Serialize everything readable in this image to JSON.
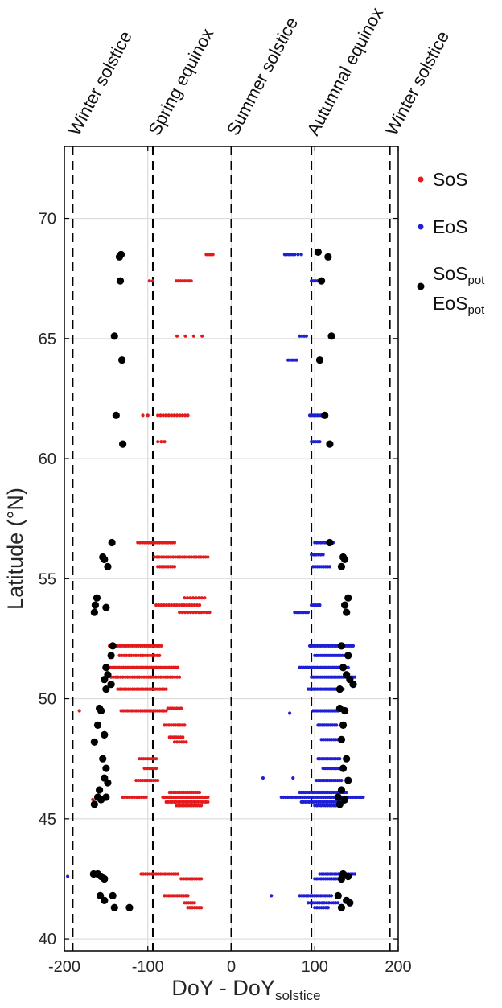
{
  "chart_data": {
    "type": "scatter",
    "xlabel": "DoY - DoY",
    "xlabel_sub": "solstice",
    "ylabel": "Latitude (°N)",
    "xlim": [
      -200,
      200
    ],
    "ylim": [
      39.5,
      73
    ],
    "xticks": [
      -200,
      -100,
      0,
      100,
      200
    ],
    "xtick_labels": [
      "-200",
      "-100",
      "0",
      "100",
      "200"
    ],
    "yticks": [
      40,
      45,
      50,
      55,
      60,
      65,
      70
    ],
    "ytick_labels": [
      "40",
      "45",
      "50",
      "55",
      "60",
      "65",
      "70"
    ],
    "grid": true,
    "events": [
      {
        "label": "Winter solstice",
        "x": -190
      },
      {
        "label": "Spring equinox",
        "x": -94
      },
      {
        "label": "Summer solstice",
        "x": 0
      },
      {
        "label": "Autumnal equinox",
        "x": 96
      },
      {
        "label": "Winter solstice",
        "x": 190
      }
    ],
    "legend": {
      "position": "right",
      "items": [
        {
          "series": "SoS",
          "label": "SoS",
          "sub": "",
          "color": "#e41a1c"
        },
        {
          "series": "EoS",
          "label": "EoS",
          "sub": "",
          "color": "#1f1fd6"
        },
        {
          "series": "pot",
          "label": "SoS",
          "sub": "pot",
          "color": "#000000"
        }
      ],
      "extra": {
        "label": "EoS",
        "sub": "pot"
      }
    },
    "series": [
      {
        "name": "SoS",
        "color": "#e41a1c",
        "clusters": [
          {
            "lat": 68.5,
            "x_from": -30,
            "x_to": -22,
            "n": 5
          },
          {
            "lat": 67.4,
            "x_from": -98,
            "x_to": -94,
            "n": 2
          },
          {
            "lat": 67.4,
            "x_from": -66,
            "x_to": -48,
            "n": 8
          },
          {
            "lat": 65.1,
            "x_from": -65,
            "x_to": -35,
            "n": 4
          },
          {
            "lat": 61.8,
            "x_from": -106,
            "x_to": -100,
            "n": 2
          },
          {
            "lat": 61.8,
            "x_from": -88,
            "x_to": -52,
            "n": 12
          },
          {
            "lat": 60.7,
            "x_from": -88,
            "x_to": -80,
            "n": 3
          },
          {
            "lat": 56.5,
            "x_from": -112,
            "x_to": -68,
            "n": 18
          },
          {
            "lat": 55.9,
            "x_from": -92,
            "x_to": -28,
            "n": 24
          },
          {
            "lat": 55.5,
            "x_from": -88,
            "x_to": -68,
            "n": 9
          },
          {
            "lat": 54.2,
            "x_from": -56,
            "x_to": -32,
            "n": 8
          },
          {
            "lat": 53.9,
            "x_from": -90,
            "x_to": -38,
            "n": 18
          },
          {
            "lat": 53.6,
            "x_from": -62,
            "x_to": -26,
            "n": 12
          },
          {
            "lat": 52.2,
            "x_from": -146,
            "x_to": -84,
            "n": 26
          },
          {
            "lat": 51.8,
            "x_from": -134,
            "x_to": -86,
            "n": 18
          },
          {
            "lat": 51.3,
            "x_from": -150,
            "x_to": -64,
            "n": 34
          },
          {
            "lat": 50.9,
            "x_from": -144,
            "x_to": -62,
            "n": 30
          },
          {
            "lat": 50.4,
            "x_from": -136,
            "x_to": -78,
            "n": 24
          },
          {
            "lat": 49.6,
            "x_from": -76,
            "x_to": -60,
            "n": 7
          },
          {
            "lat": 49.5,
            "x_from": -182,
            "x_to": -180,
            "n": 1
          },
          {
            "lat": 49.5,
            "x_from": -132,
            "x_to": -78,
            "n": 22
          },
          {
            "lat": 48.9,
            "x_from": -80,
            "x_to": -56,
            "n": 10
          },
          {
            "lat": 48.4,
            "x_from": -74,
            "x_to": -58,
            "n": 7
          },
          {
            "lat": 48.2,
            "x_from": -68,
            "x_to": -54,
            "n": 6
          },
          {
            "lat": 47.5,
            "x_from": -110,
            "x_to": -90,
            "n": 9
          },
          {
            "lat": 47.1,
            "x_from": -104,
            "x_to": -90,
            "n": 6
          },
          {
            "lat": 46.6,
            "x_from": -114,
            "x_to": -88,
            "n": 11
          },
          {
            "lat": 46.1,
            "x_from": -74,
            "x_to": -38,
            "n": 16
          },
          {
            "lat": 45.9,
            "x_from": -130,
            "x_to": -102,
            "n": 11
          },
          {
            "lat": 45.9,
            "x_from": -82,
            "x_to": -28,
            "n": 26
          },
          {
            "lat": 45.7,
            "x_from": -78,
            "x_to": -28,
            "n": 22
          },
          {
            "lat": 45.55,
            "x_from": -66,
            "x_to": -36,
            "n": 14
          },
          {
            "lat": 45.8,
            "x_from": -166,
            "x_to": -164,
            "n": 1
          },
          {
            "lat": 42.7,
            "x_from": -108,
            "x_to": -64,
            "n": 18
          },
          {
            "lat": 42.5,
            "x_from": -60,
            "x_to": -36,
            "n": 10
          },
          {
            "lat": 41.8,
            "x_from": -80,
            "x_to": -52,
            "n": 12
          },
          {
            "lat": 41.5,
            "x_from": -56,
            "x_to": -44,
            "n": 6
          },
          {
            "lat": 41.3,
            "x_from": -52,
            "x_to": -36,
            "n": 7
          }
        ]
      },
      {
        "name": "EoS",
        "color": "#1f1fd6",
        "clusters": [
          {
            "lat": 68.5,
            "x_from": 64,
            "x_to": 76,
            "n": 6
          },
          {
            "lat": 68.5,
            "x_from": 80,
            "x_to": 84,
            "n": 2
          },
          {
            "lat": 67.4,
            "x_from": 96,
            "x_to": 108,
            "n": 6
          },
          {
            "lat": 65.1,
            "x_from": 82,
            "x_to": 90,
            "n": 4
          },
          {
            "lat": 64.1,
            "x_from": 68,
            "x_to": 78,
            "n": 5
          },
          {
            "lat": 61.8,
            "x_from": 94,
            "x_to": 112,
            "n": 9
          },
          {
            "lat": 60.7,
            "x_from": 96,
            "x_to": 106,
            "n": 5
          },
          {
            "lat": 56.5,
            "x_from": 100,
            "x_to": 122,
            "n": 10
          },
          {
            "lat": 56.0,
            "x_from": 96,
            "x_to": 110,
            "n": 6
          },
          {
            "lat": 55.5,
            "x_from": 98,
            "x_to": 118,
            "n": 9
          },
          {
            "lat": 53.9,
            "x_from": 96,
            "x_to": 106,
            "n": 5
          },
          {
            "lat": 53.6,
            "x_from": 76,
            "x_to": 92,
            "n": 7
          },
          {
            "lat": 52.2,
            "x_from": 94,
            "x_to": 146,
            "n": 24
          },
          {
            "lat": 51.8,
            "x_from": 100,
            "x_to": 140,
            "n": 18
          },
          {
            "lat": 51.3,
            "x_from": 82,
            "x_to": 140,
            "n": 26
          },
          {
            "lat": 50.9,
            "x_from": 96,
            "x_to": 148,
            "n": 24
          },
          {
            "lat": 50.4,
            "x_from": 92,
            "x_to": 134,
            "n": 20
          },
          {
            "lat": 49.5,
            "x_from": 98,
            "x_to": 128,
            "n": 14
          },
          {
            "lat": 49.4,
            "x_from": 70,
            "x_to": 72,
            "n": 1
          },
          {
            "lat": 48.9,
            "x_from": 104,
            "x_to": 126,
            "n": 10
          },
          {
            "lat": 48.3,
            "x_from": 108,
            "x_to": 130,
            "n": 10
          },
          {
            "lat": 47.5,
            "x_from": 104,
            "x_to": 130,
            "n": 12
          },
          {
            "lat": 47.1,
            "x_from": 110,
            "x_to": 128,
            "n": 8
          },
          {
            "lat": 46.6,
            "x_from": 102,
            "x_to": 132,
            "n": 14
          },
          {
            "lat": 46.7,
            "x_from": 38,
            "x_to": 40,
            "n": 1
          },
          {
            "lat": 46.7,
            "x_from": 74,
            "x_to": 76,
            "n": 1
          },
          {
            "lat": 46.1,
            "x_from": 82,
            "x_to": 138,
            "n": 26
          },
          {
            "lat": 45.9,
            "x_from": 60,
            "x_to": 158,
            "n": 40
          },
          {
            "lat": 45.7,
            "x_from": 84,
            "x_to": 136,
            "n": 24
          },
          {
            "lat": 45.55,
            "x_from": 100,
            "x_to": 128,
            "n": 12
          },
          {
            "lat": 42.7,
            "x_from": 106,
            "x_to": 148,
            "n": 18
          },
          {
            "lat": 42.5,
            "x_from": 100,
            "x_to": 128,
            "n": 12
          },
          {
            "lat": 42.6,
            "x_from": -196,
            "x_to": -194,
            "n": 1
          },
          {
            "lat": 41.8,
            "x_from": 82,
            "x_to": 120,
            "n": 16
          },
          {
            "lat": 41.8,
            "x_from": 48,
            "x_to": 50,
            "n": 1
          },
          {
            "lat": 41.5,
            "x_from": 92,
            "x_to": 128,
            "n": 14
          },
          {
            "lat": 41.3,
            "x_from": 100,
            "x_to": 116,
            "n": 7
          }
        ]
      },
      {
        "name": "pot",
        "color": "#000000",
        "points": [
          [
            -132,
            68.5
          ],
          [
            -134,
            68.4
          ],
          [
            -133,
            67.4
          ],
          [
            -140,
            65.1
          ],
          [
            -131,
            64.1
          ],
          [
            -138,
            61.8
          ],
          [
            -130,
            60.6
          ],
          [
            -143,
            56.5
          ],
          [
            -154,
            55.9
          ],
          [
            -152,
            55.8
          ],
          [
            -148,
            55.5
          ],
          [
            -161,
            54.2
          ],
          [
            -163,
            53.9
          ],
          [
            -150,
            53.8
          ],
          [
            -164,
            53.6
          ],
          [
            -142,
            52.2
          ],
          [
            -144,
            51.8
          ],
          [
            -150,
            51.3
          ],
          [
            -148,
            51.0
          ],
          [
            -152,
            50.8
          ],
          [
            -144,
            50.6
          ],
          [
            -150,
            50.4
          ],
          [
            -158,
            49.6
          ],
          [
            -156,
            49.5
          ],
          [
            -160,
            48.9
          ],
          [
            -152,
            48.5
          ],
          [
            -164,
            48.2
          ],
          [
            -154,
            47.5
          ],
          [
            -150,
            47.1
          ],
          [
            -152,
            46.7
          ],
          [
            -148,
            46.5
          ],
          [
            -158,
            46.2
          ],
          [
            -160,
            45.9
          ],
          [
            -156,
            45.8
          ],
          [
            -150,
            45.9
          ],
          [
            -164,
            45.6
          ],
          [
            -165,
            42.7
          ],
          [
            -160,
            42.7
          ],
          [
            -156,
            42.6
          ],
          [
            -152,
            42.5
          ],
          [
            -157,
            41.8
          ],
          [
            -142,
            41.8
          ],
          [
            -152,
            41.6
          ],
          [
            -140,
            41.3
          ],
          [
            -122,
            41.3
          ],
          [
            104,
            68.6
          ],
          [
            116,
            68.4
          ],
          [
            108,
            67.4
          ],
          [
            120,
            65.1
          ],
          [
            106,
            64.1
          ],
          [
            112,
            61.8
          ],
          [
            118,
            60.6
          ],
          [
            118,
            56.5
          ],
          [
            134,
            55.9
          ],
          [
            136,
            55.8
          ],
          [
            132,
            55.5
          ],
          [
            140,
            54.2
          ],
          [
            136,
            53.9
          ],
          [
            138,
            53.6
          ],
          [
            132,
            52.2
          ],
          [
            140,
            51.8
          ],
          [
            134,
            51.3
          ],
          [
            138,
            51.0
          ],
          [
            142,
            50.8
          ],
          [
            146,
            50.6
          ],
          [
            130,
            50.4
          ],
          [
            130,
            49.6
          ],
          [
            136,
            49.5
          ],
          [
            134,
            48.9
          ],
          [
            132,
            48.3
          ],
          [
            138,
            47.5
          ],
          [
            134,
            47.1
          ],
          [
            140,
            46.6
          ],
          [
            132,
            46.2
          ],
          [
            128,
            45.9
          ],
          [
            136,
            45.8
          ],
          [
            130,
            45.6
          ],
          [
            134,
            42.7
          ],
          [
            140,
            42.6
          ],
          [
            132,
            42.5
          ],
          [
            128,
            41.8
          ],
          [
            138,
            41.6
          ],
          [
            132,
            41.3
          ],
          [
            142,
            41.5
          ]
        ]
      }
    ]
  }
}
